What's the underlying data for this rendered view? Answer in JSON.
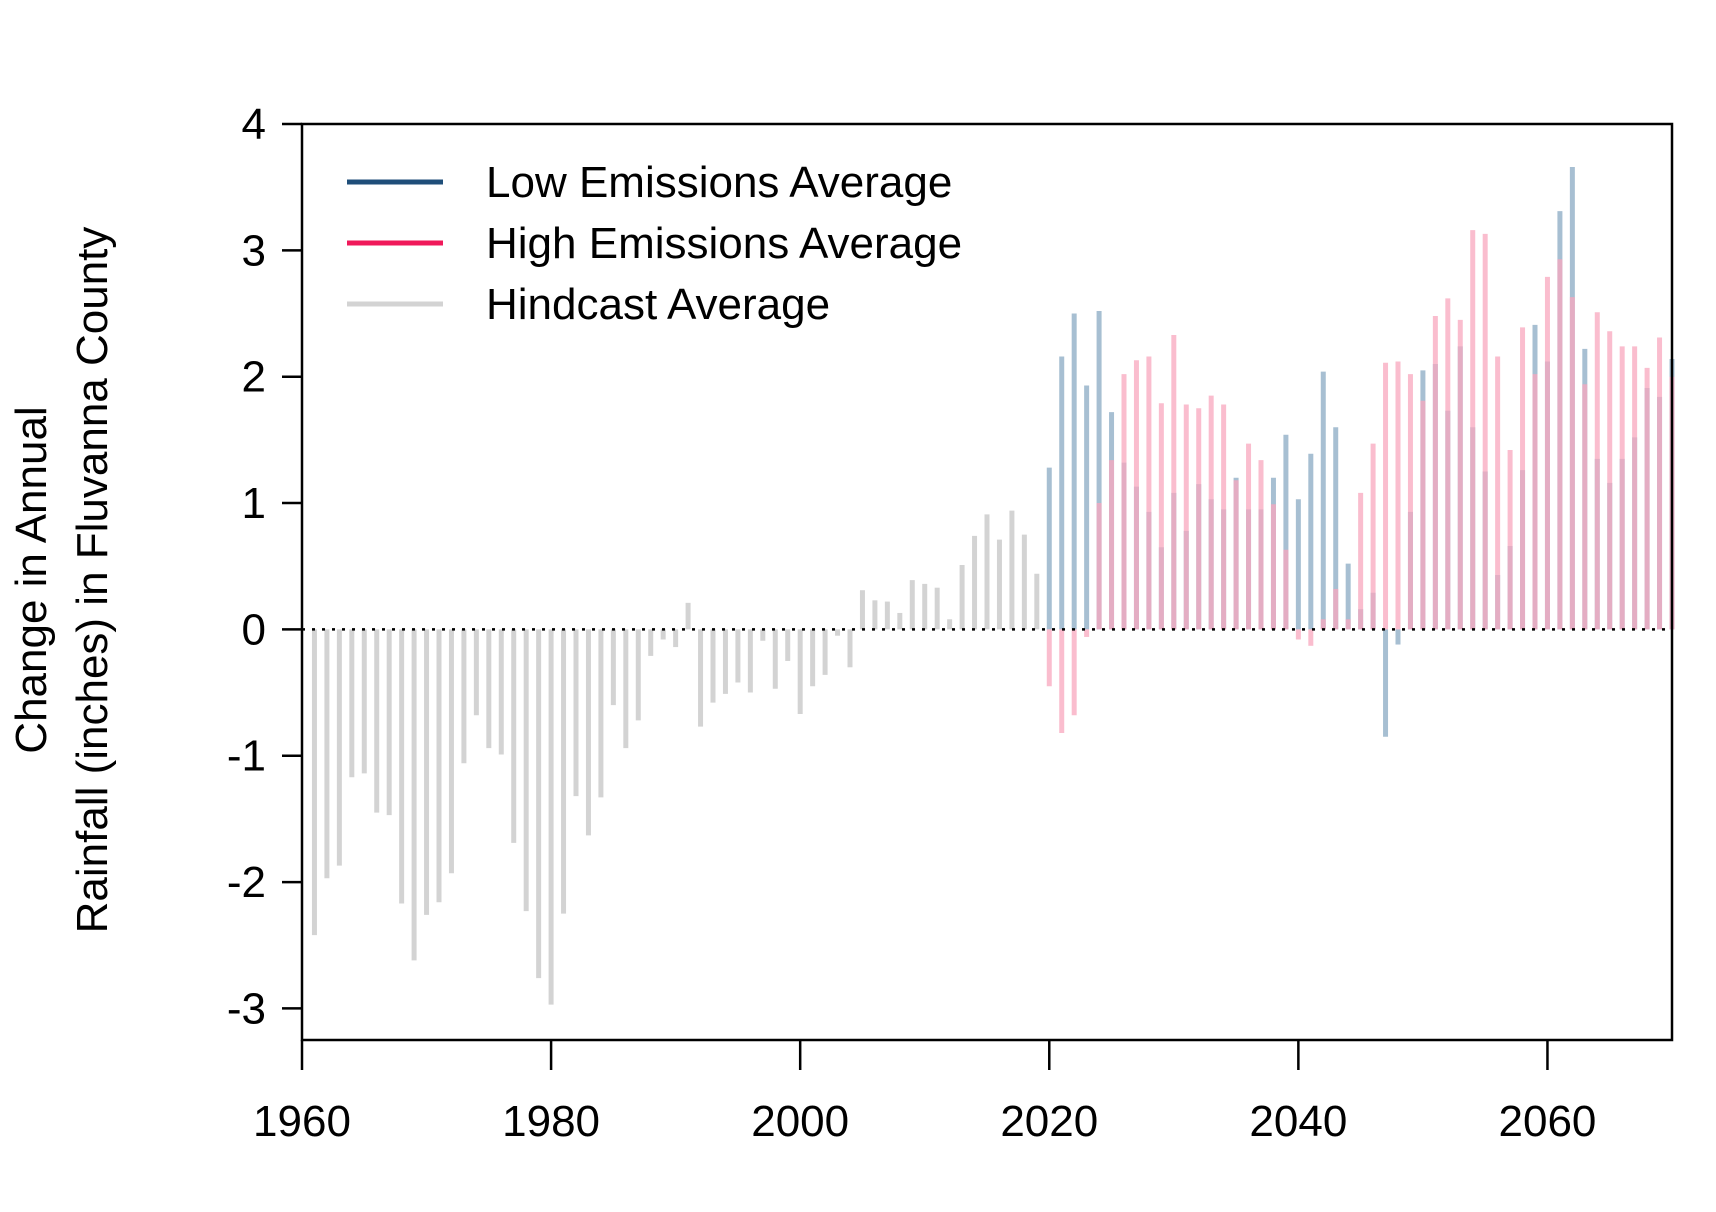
{
  "chart_data": {
    "type": "bar",
    "title": "",
    "xlabel": "",
    "ylabel": [
      "Change in Annual",
      "Rainfall (inches) in Fluvanna County"
    ],
    "xlim": [
      1960,
      2070
    ],
    "ylim": [
      -3.25,
      4
    ],
    "xticks": [
      "1960",
      "1980",
      "2000",
      "2020",
      "2040",
      "2060"
    ],
    "yticks": [
      "-3",
      "-2",
      "-1",
      "0",
      "1",
      "2",
      "3",
      "4"
    ],
    "reference_line": {
      "y": 0,
      "style": "dotted"
    },
    "legend": {
      "position": "top-left"
    },
    "series": [
      {
        "name": "Low Emissions Average",
        "color": "#1f4e79",
        "render_color": "#a7bfd2",
        "x": [
          2020,
          2021,
          2022,
          2023,
          2024,
          2025,
          2026,
          2027,
          2028,
          2029,
          2030,
          2031,
          2032,
          2033,
          2034,
          2035,
          2036,
          2037,
          2038,
          2039,
          2040,
          2041,
          2042,
          2043,
          2044,
          2045,
          2046,
          2047,
          2048,
          2049,
          2050,
          2051,
          2052,
          2053,
          2054,
          2055,
          2056,
          2057,
          2058,
          2059,
          2060,
          2061,
          2062,
          2063,
          2064,
          2065,
          2066,
          2067,
          2068,
          2069,
          2070
        ],
        "values": [
          1.28,
          2.16,
          2.5,
          1.93,
          2.52,
          1.72,
          1.32,
          1.13,
          0.93,
          0.65,
          1.08,
          0.78,
          1.15,
          1.03,
          0.95,
          1.2,
          0.95,
          0.95,
          1.2,
          1.54,
          1.03,
          1.39,
          2.04,
          1.6,
          0.52,
          0.16,
          0.29,
          -0.85,
          -0.12,
          0.93,
          2.05,
          2.1,
          1.73,
          2.24,
          1.6,
          1.25,
          0.43,
          0.66,
          1.26,
          2.41,
          2.12,
          3.31,
          3.66,
          2.22,
          1.35,
          1.16,
          1.35,
          1.52,
          1.91,
          1.84,
          2.14
        ]
      },
      {
        "name": "High Emissions Average",
        "color": "#f0195a",
        "render_color": "#f8a7bd",
        "x": [
          2020,
          2021,
          2022,
          2023,
          2024,
          2025,
          2026,
          2027,
          2028,
          2029,
          2030,
          2031,
          2032,
          2033,
          2034,
          2035,
          2036,
          2037,
          2038,
          2039,
          2040,
          2041,
          2042,
          2043,
          2044,
          2045,
          2046,
          2047,
          2048,
          2049,
          2050,
          2051,
          2052,
          2053,
          2054,
          2055,
          2056,
          2057,
          2058,
          2059,
          2060,
          2061,
          2062,
          2063,
          2064,
          2065,
          2066,
          2067,
          2068,
          2069,
          2070
        ],
        "values": [
          -0.45,
          -0.82,
          -0.68,
          -0.06,
          1.0,
          1.34,
          2.02,
          2.13,
          2.16,
          1.79,
          2.33,
          1.78,
          1.75,
          1.85,
          1.78,
          1.18,
          1.47,
          1.34,
          0.99,
          0.63,
          -0.08,
          -0.13,
          0.08,
          0.32,
          0.08,
          1.08,
          1.47,
          2.11,
          2.12,
          2.02,
          1.81,
          2.48,
          2.62,
          2.45,
          3.16,
          3.13,
          2.16,
          1.42,
          2.39,
          2.02,
          2.79,
          2.93,
          2.63,
          1.94,
          2.51,
          2.36,
          2.24,
          2.24,
          2.07,
          2.31,
          2.0
        ]
      },
      {
        "name": "Hindcast Average",
        "color": "#d3d3d3",
        "render_color": "#d3d3d3",
        "x": [
          1961,
          1962,
          1963,
          1964,
          1965,
          1966,
          1967,
          1968,
          1969,
          1970,
          1971,
          1972,
          1973,
          1974,
          1975,
          1976,
          1977,
          1978,
          1979,
          1980,
          1981,
          1982,
          1983,
          1984,
          1985,
          1986,
          1987,
          1988,
          1989,
          1990,
          1991,
          1992,
          1993,
          1994,
          1995,
          1996,
          1997,
          1998,
          1999,
          2000,
          2001,
          2002,
          2003,
          2004,
          2005,
          2006,
          2007,
          2008,
          2009,
          2010,
          2011,
          2012,
          2013,
          2014,
          2015,
          2016,
          2017,
          2018,
          2019
        ],
        "values": [
          -2.42,
          -1.97,
          -1.87,
          -1.17,
          -1.14,
          -1.45,
          -1.47,
          -2.17,
          -2.62,
          -2.26,
          -2.16,
          -1.93,
          -1.06,
          -0.68,
          -0.94,
          -0.99,
          -1.69,
          -2.23,
          -2.76,
          -2.97,
          -2.25,
          -1.32,
          -1.63,
          -1.33,
          -0.6,
          -0.94,
          -0.72,
          -0.21,
          -0.08,
          -0.14,
          0.21,
          -0.77,
          -0.58,
          -0.51,
          -0.42,
          -0.5,
          -0.09,
          -0.47,
          -0.25,
          -0.67,
          -0.45,
          -0.36,
          -0.05,
          -0.3,
          0.31,
          0.23,
          0.22,
          0.13,
          0.39,
          0.36,
          0.33,
          0.08,
          0.51,
          0.74,
          0.91,
          0.71,
          0.94,
          0.75,
          0.44
        ]
      }
    ]
  }
}
